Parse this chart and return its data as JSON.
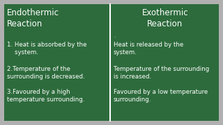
{
  "bg_color": "#2d6b3c",
  "border_color": "#b0b0b0",
  "divider_color": "#ffffff",
  "text_color": "#ffffff",
  "left_title": "Endothermic\nReaction",
  "right_title": "Exothermic\nReaction",
  "left_points": [
    "1. Heat is absorbed by the\n    system.",
    "2.Temperature of the\nsurrounding is decreased.",
    "3.Favoured by a high\ntemperature surrounding."
  ],
  "right_points": [
    "Heat is released by the\nsystem.",
    "Temperature of the surrounding\nis increased.",
    "Favoured by a low temperature\nsurrounding."
  ],
  "dot": ".",
  "title_fontsize": 8.5,
  "body_fontsize": 6.2,
  "outer_bg": "#b8b8b8"
}
